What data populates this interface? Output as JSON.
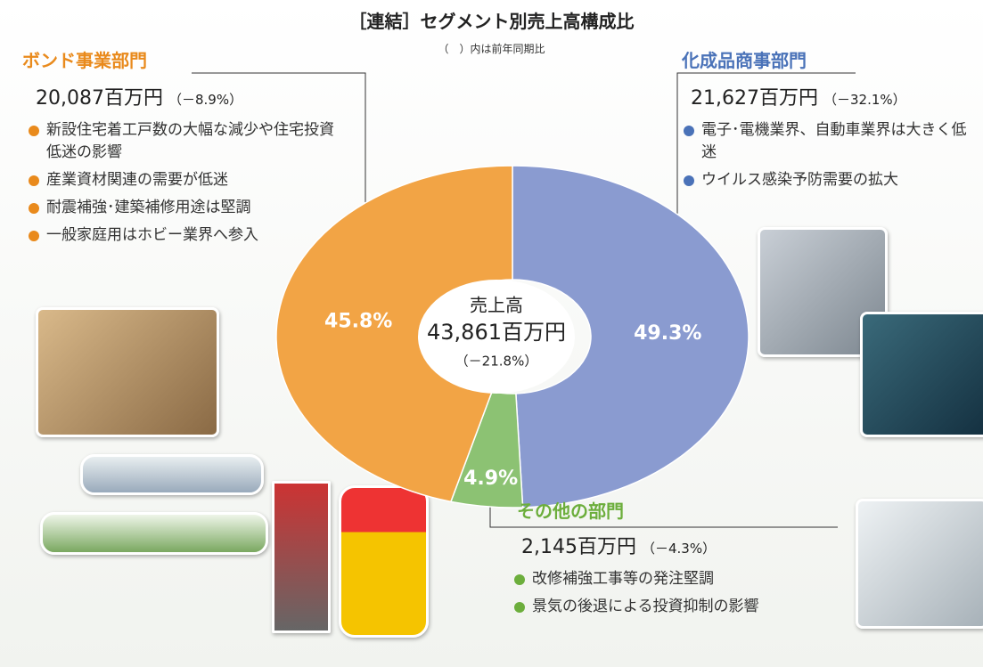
{
  "chart_data": {
    "type": "donut",
    "title": "［連結］セグメント別売上高構成比",
    "subtitle": "（　）内は前年同期比",
    "categories": [
      "化成品商事部門",
      "その他の部門",
      "ボンド事業部門"
    ],
    "values": [
      49.3,
      4.9,
      45.8
    ],
    "value_labels": [
      "49.3%",
      "4.9%",
      "45.8%"
    ],
    "colors": [
      "#8a9bd0",
      "#8cc273",
      "#f2a445"
    ],
    "header_colors": [
      "#4a72b8",
      "#6cae3c",
      "#e98a1c"
    ],
    "center": {
      "label": "売上高",
      "amount": "43,861百万円",
      "change": "（－21.8%）"
    },
    "details": [
      {
        "amount": "21,627百万円",
        "change": "（－32.1%）",
        "notes": [
          "電子･電機業界、自動車業界は大きく低迷",
          "ウイルス感染予防需要の拡大"
        ]
      },
      {
        "amount": "2,145百万円",
        "change": "（－4.3%）",
        "notes": [
          "改修補強工事等の発注堅調",
          "景気の後退による投資抑制の影響"
        ]
      },
      {
        "amount": "20,087百万円",
        "change": "（－8.9%）",
        "notes": [
          "新設住宅着工戸数の大幅な減少や住宅投資低迷の影響",
          "産業資材関連の需要が低迷",
          "耐震補強･建築補修用途は堅調",
          "一般家庭用はホビー業界へ参入"
        ]
      }
    ]
  }
}
